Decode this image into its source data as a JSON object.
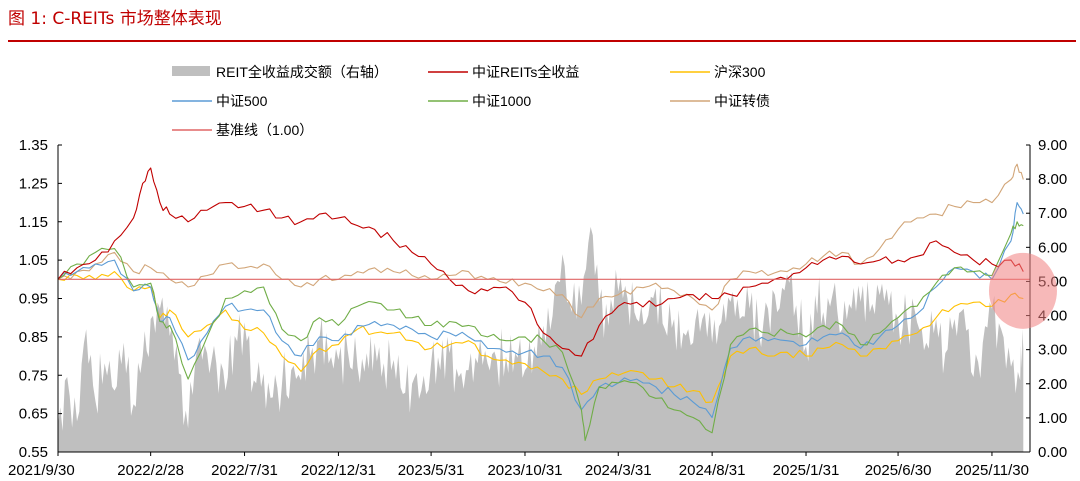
{
  "caption": "图 1: C-REITs 市场整体表现",
  "colors": {
    "caption": "#c00000",
    "volume": "#bfbfbf",
    "reits": "#c00000",
    "hs300": "#ffc000",
    "zz500": "#5b9bd5",
    "zz1000": "#70ad47",
    "zzcb": "#d2a679",
    "baseline": "#e06666",
    "highlight": "#f08080"
  },
  "chart_data": {
    "type": "line",
    "title": "",
    "legend_position": "top",
    "legend": [
      {
        "name": "REIT全收益成交额（右轴）",
        "key": "volume",
        "kind": "area"
      },
      {
        "name": "中证REITs全收益",
        "key": "reits",
        "kind": "line"
      },
      {
        "name": "沪深300",
        "key": "hs300",
        "kind": "line"
      },
      {
        "name": "中证500",
        "key": "zz500",
        "kind": "line"
      },
      {
        "name": "中证1000",
        "key": "zz1000",
        "kind": "line"
      },
      {
        "name": "中证转债",
        "key": "zzcb",
        "kind": "line"
      },
      {
        "name": "基准线（1.00）",
        "key": "baseline",
        "kind": "line"
      }
    ],
    "x_ticks": [
      "2021/9/30",
      "2022/2/28",
      "2022/7/31",
      "2022/12/31",
      "2023/5/31",
      "2023/10/31",
      "2024/3/31",
      "2024/8/31",
      "2025/1/31",
      "2025/6/30",
      "2025/11/30"
    ],
    "x_range": [
      "2021/9/30",
      "2026/1/31"
    ],
    "y_left": {
      "range": [
        0.55,
        1.35
      ],
      "ticks": [
        "0.55",
        "0.65",
        "0.75",
        "0.85",
        "0.95",
        "1.05",
        "1.15",
        "1.25",
        "1.35"
      ]
    },
    "y_right": {
      "range": [
        0,
        9
      ],
      "ticks": [
        "0.00",
        "1.00",
        "2.00",
        "3.00",
        "4.00",
        "5.00",
        "6.00",
        "7.00",
        "8.00",
        "9.00"
      ]
    },
    "baseline_value": 1.0,
    "highlight_note": "red circle marking the latest period (2025/12–2026/1)",
    "series": [
      {
        "name": "中证REITs全收益",
        "key": "reits",
        "axis": "left",
        "x": [
          "2021/9/30",
          "2021/10/31",
          "2021/11/30",
          "2021/12/31",
          "2022/1/31",
          "2022/2/15",
          "2022/2/28",
          "2022/3/15",
          "2022/3/31",
          "2022/4/30",
          "2022/5/31",
          "2022/6/30",
          "2022/7/31",
          "2022/8/31",
          "2022/9/30",
          "2022/10/31",
          "2022/11/30",
          "2022/12/31",
          "2023/1/31",
          "2023/2/28",
          "2023/3/31",
          "2023/4/30",
          "2023/5/31",
          "2023/6/30",
          "2023/7/31",
          "2023/8/31",
          "2023/9/30",
          "2023/10/31",
          "2023/11/30",
          "2023/12/31",
          "2024/1/31",
          "2024/2/29",
          "2024/3/31",
          "2024/4/30",
          "2024/5/31",
          "2024/6/30",
          "2024/7/31",
          "2024/8/31",
          "2024/9/30",
          "2024/10/31",
          "2024/11/30",
          "2024/12/31",
          "2025/1/31",
          "2025/2/28",
          "2025/3/31",
          "2025/4/30",
          "2025/5/31",
          "2025/6/30",
          "2025/7/31",
          "2025/8/31",
          "2025/9/30",
          "2025/10/31",
          "2025/11/30",
          "2025/12/31",
          "2026/1/20"
        ],
        "values": [
          1.0,
          1.03,
          1.05,
          1.1,
          1.16,
          1.25,
          1.29,
          1.2,
          1.17,
          1.15,
          1.18,
          1.2,
          1.19,
          1.18,
          1.16,
          1.15,
          1.17,
          1.16,
          1.14,
          1.13,
          1.1,
          1.07,
          1.04,
          1.0,
          0.97,
          0.97,
          0.98,
          0.94,
          0.86,
          0.82,
          0.8,
          0.88,
          0.93,
          0.94,
          0.93,
          0.95,
          0.96,
          0.95,
          0.96,
          0.98,
          0.99,
          1.0,
          1.03,
          1.05,
          1.06,
          1.04,
          1.05,
          1.05,
          1.06,
          1.1,
          1.07,
          1.05,
          1.04,
          1.05,
          1.02
        ]
      },
      {
        "name": "沪深300",
        "key": "hs300",
        "axis": "left",
        "x": [
          "2021/9/30",
          "2021/10/31",
          "2021/11/30",
          "2021/12/31",
          "2022/1/31",
          "2022/2/28",
          "2022/3/15",
          "2022/3/31",
          "2022/4/30",
          "2022/5/31",
          "2022/6/30",
          "2022/7/31",
          "2022/8/31",
          "2022/9/30",
          "2022/10/31",
          "2022/11/30",
          "2022/12/31",
          "2023/1/31",
          "2023/2/28",
          "2023/3/31",
          "2023/4/30",
          "2023/5/31",
          "2023/6/30",
          "2023/7/31",
          "2023/8/31",
          "2023/9/30",
          "2023/10/31",
          "2023/11/30",
          "2023/12/31",
          "2024/1/31",
          "2024/2/29",
          "2024/3/31",
          "2024/4/30",
          "2024/5/31",
          "2024/6/30",
          "2024/7/31",
          "2024/8/31",
          "2024/9/30",
          "2024/10/31",
          "2024/11/30",
          "2024/12/31",
          "2025/1/31",
          "2025/2/28",
          "2025/3/31",
          "2025/4/30",
          "2025/5/31",
          "2025/6/30",
          "2025/7/31",
          "2025/8/31",
          "2025/9/30",
          "2025/10/31",
          "2025/11/30",
          "2025/12/31",
          "2026/1/20"
        ],
        "values": [
          1.0,
          1.01,
          1.0,
          1.02,
          0.97,
          0.98,
          0.9,
          0.92,
          0.85,
          0.88,
          0.92,
          0.87,
          0.86,
          0.8,
          0.76,
          0.82,
          0.83,
          0.87,
          0.86,
          0.86,
          0.84,
          0.82,
          0.83,
          0.84,
          0.8,
          0.79,
          0.78,
          0.76,
          0.74,
          0.7,
          0.74,
          0.75,
          0.76,
          0.74,
          0.72,
          0.71,
          0.68,
          0.8,
          0.82,
          0.8,
          0.81,
          0.8,
          0.82,
          0.83,
          0.8,
          0.82,
          0.84,
          0.86,
          0.9,
          0.93,
          0.94,
          0.93,
          0.96,
          0.95
        ]
      },
      {
        "name": "中证500",
        "key": "zz500",
        "axis": "left",
        "x": [
          "2021/9/30",
          "2021/10/31",
          "2021/11/30",
          "2021/12/31",
          "2022/1/31",
          "2022/2/28",
          "2022/3/15",
          "2022/3/31",
          "2022/4/30",
          "2022/5/31",
          "2022/6/30",
          "2022/7/31",
          "2022/8/31",
          "2022/9/30",
          "2022/10/31",
          "2022/11/30",
          "2022/12/31",
          "2023/1/31",
          "2023/2/28",
          "2023/3/31",
          "2023/4/30",
          "2023/5/31",
          "2023/6/30",
          "2023/7/31",
          "2023/8/31",
          "2023/9/30",
          "2023/10/31",
          "2023/11/30",
          "2023/12/31",
          "2024/1/31",
          "2024/2/29",
          "2024/3/31",
          "2024/4/30",
          "2024/5/31",
          "2024/6/30",
          "2024/7/31",
          "2024/8/31",
          "2024/9/30",
          "2024/10/31",
          "2024/11/30",
          "2024/12/31",
          "2025/1/31",
          "2025/2/28",
          "2025/3/31",
          "2025/4/30",
          "2025/5/31",
          "2025/6/30",
          "2025/7/31",
          "2025/8/31",
          "2025/9/30",
          "2025/10/31",
          "2025/11/30",
          "2025/12/31",
          "2026/1/10",
          "2026/1/20"
        ],
        "values": [
          1.0,
          1.02,
          1.04,
          1.05,
          0.97,
          0.98,
          0.89,
          0.9,
          0.79,
          0.86,
          0.93,
          0.92,
          0.92,
          0.84,
          0.8,
          0.85,
          0.84,
          0.88,
          0.89,
          0.88,
          0.87,
          0.85,
          0.86,
          0.85,
          0.82,
          0.81,
          0.81,
          0.8,
          0.77,
          0.66,
          0.72,
          0.73,
          0.74,
          0.72,
          0.7,
          0.68,
          0.64,
          0.82,
          0.85,
          0.84,
          0.84,
          0.83,
          0.85,
          0.86,
          0.82,
          0.85,
          0.88,
          0.91,
          0.98,
          1.03,
          1.02,
          1.0,
          1.1,
          1.2,
          1.17
        ]
      },
      {
        "name": "中证1000",
        "key": "zz1000",
        "axis": "left",
        "x": [
          "2021/9/30",
          "2021/10/31",
          "2021/11/30",
          "2021/12/31",
          "2022/1/31",
          "2022/2/28",
          "2022/3/15",
          "2022/3/31",
          "2022/4/30",
          "2022/5/31",
          "2022/6/30",
          "2022/7/31",
          "2022/8/31",
          "2022/9/30",
          "2022/10/31",
          "2022/11/30",
          "2022/12/31",
          "2023/1/31",
          "2023/2/28",
          "2023/3/31",
          "2023/4/30",
          "2023/5/31",
          "2023/6/30",
          "2023/7/31",
          "2023/8/31",
          "2023/9/30",
          "2023/10/31",
          "2023/11/30",
          "2023/12/31",
          "2024/1/31",
          "2024/2/6",
          "2024/2/29",
          "2024/3/31",
          "2024/4/30",
          "2024/5/31",
          "2024/6/30",
          "2024/7/31",
          "2024/8/31",
          "2024/9/30",
          "2024/10/31",
          "2024/11/30",
          "2024/12/31",
          "2025/1/31",
          "2025/2/28",
          "2025/3/31",
          "2025/4/30",
          "2025/5/31",
          "2025/6/30",
          "2025/7/31",
          "2025/8/31",
          "2025/9/30",
          "2025/10/31",
          "2025/11/30",
          "2025/12/31",
          "2026/1/10",
          "2026/1/20"
        ],
        "values": [
          1.0,
          1.04,
          1.07,
          1.08,
          0.98,
          0.99,
          0.89,
          0.88,
          0.74,
          0.85,
          0.95,
          0.97,
          0.98,
          0.87,
          0.84,
          0.9,
          0.88,
          0.93,
          0.94,
          0.92,
          0.9,
          0.88,
          0.89,
          0.88,
          0.85,
          0.84,
          0.85,
          0.84,
          0.81,
          0.66,
          0.58,
          0.72,
          0.73,
          0.73,
          0.69,
          0.66,
          0.64,
          0.6,
          0.83,
          0.87,
          0.86,
          0.86,
          0.85,
          0.88,
          0.88,
          0.83,
          0.86,
          0.9,
          0.93,
          0.99,
          1.03,
          1.02,
          1.01,
          1.12,
          1.15,
          1.14
        ]
      },
      {
        "name": "中证转债",
        "key": "zzcb",
        "axis": "left",
        "x": [
          "2021/9/30",
          "2021/10/31",
          "2021/11/30",
          "2021/12/31",
          "2022/1/31",
          "2022/2/28",
          "2022/3/31",
          "2022/4/30",
          "2022/5/31",
          "2022/6/30",
          "2022/7/31",
          "2022/8/31",
          "2022/9/30",
          "2022/10/31",
          "2022/11/30",
          "2022/12/31",
          "2023/1/31",
          "2023/2/28",
          "2023/3/31",
          "2023/4/30",
          "2023/5/31",
          "2023/6/30",
          "2023/7/31",
          "2023/8/31",
          "2023/9/30",
          "2023/10/31",
          "2023/11/30",
          "2023/12/31",
          "2024/1/31",
          "2024/2/29",
          "2024/3/31",
          "2024/4/30",
          "2024/5/31",
          "2024/6/30",
          "2024/7/31",
          "2024/8/31",
          "2024/9/30",
          "2024/10/31",
          "2024/11/30",
          "2024/12/31",
          "2025/1/31",
          "2025/2/28",
          "2025/3/31",
          "2025/4/30",
          "2025/5/31",
          "2025/6/30",
          "2025/7/31",
          "2025/8/31",
          "2025/9/30",
          "2025/10/31",
          "2025/11/30",
          "2025/12/31",
          "2026/1/10",
          "2026/1/20"
        ],
        "values": [
          1.0,
          1.02,
          1.04,
          1.07,
          1.02,
          1.03,
          1.0,
          0.98,
          1.01,
          1.04,
          1.03,
          1.04,
          1.0,
          0.98,
          1.0,
          1.0,
          1.02,
          1.03,
          1.02,
          1.01,
          1.0,
          1.01,
          1.02,
          1.0,
          0.99,
          0.99,
          0.97,
          0.96,
          0.9,
          0.95,
          0.96,
          0.98,
          0.99,
          0.97,
          0.95,
          0.92,
          1.0,
          1.02,
          1.01,
          1.02,
          1.04,
          1.06,
          1.07,
          1.04,
          1.08,
          1.13,
          1.16,
          1.17,
          1.19,
          1.2,
          1.2,
          1.26,
          1.3,
          1.26
        ]
      },
      {
        "name": "REIT全收益成交额（右轴）",
        "key": "volume",
        "axis": "right",
        "kind": "area",
        "x": [
          "2021/9/30",
          "2021/10/15",
          "2021/10/31",
          "2021/11/15",
          "2021/11/30",
          "2021/12/15",
          "2021/12/31",
          "2022/1/15",
          "2022/1/31",
          "2022/2/15",
          "2022/2/28",
          "2022/3/15",
          "2022/3/31",
          "2022/4/15",
          "2022/4/30",
          "2022/5/15",
          "2022/5/31",
          "2022/6/15",
          "2022/6/30",
          "2022/7/15",
          "2022/7/31",
          "2022/8/15",
          "2022/8/31",
          "2022/9/15",
          "2022/9/30",
          "2022/10/15",
          "2022/10/31",
          "2022/11/15",
          "2022/11/30",
          "2022/12/15",
          "2022/12/31",
          "2023/1/15",
          "2023/1/31",
          "2023/2/15",
          "2023/2/28",
          "2023/3/15",
          "2023/3/31",
          "2023/4/15",
          "2023/4/30",
          "2023/5/15",
          "2023/5/31",
          "2023/6/15",
          "2023/6/30",
          "2023/7/15",
          "2023/7/31",
          "2023/8/15",
          "2023/8/31",
          "2023/9/15",
          "2023/9/30",
          "2023/10/15",
          "2023/10/31",
          "2023/11/15",
          "2023/11/30",
          "2023/12/15",
          "2023/12/31",
          "2024/1/15",
          "2024/1/31",
          "2024/2/15",
          "2024/2/29",
          "2024/3/15",
          "2024/3/31",
          "2024/4/15",
          "2024/4/30",
          "2024/5/15",
          "2024/5/31",
          "2024/6/15",
          "2024/6/30",
          "2024/7/15",
          "2024/7/31",
          "2024/8/15",
          "2024/8/31",
          "2024/9/15",
          "2024/9/30",
          "2024/10/15",
          "2024/10/31",
          "2024/11/15",
          "2024/11/30",
          "2024/12/15",
          "2024/12/31",
          "2025/1/15",
          "2025/1/31",
          "2025/2/15",
          "2025/2/28",
          "2025/3/15",
          "2025/3/31",
          "2025/4/15",
          "2025/4/30",
          "2025/5/15",
          "2025/5/31",
          "2025/6/15",
          "2025/6/30",
          "2025/7/15",
          "2025/7/31",
          "2025/8/15",
          "2025/8/31",
          "2025/9/15",
          "2025/9/30",
          "2025/10/15",
          "2025/10/31",
          "2025/11/15",
          "2025/11/30",
          "2025/12/15",
          "2025/12/31",
          "2026/1/15",
          "2026/1/20"
        ],
        "values": [
          0.8,
          2.2,
          0.9,
          3.6,
          1.5,
          2.6,
          1.8,
          3.2,
          1.4,
          2.8,
          3.9,
          4.2,
          3.4,
          2.3,
          0.7,
          3.1,
          2.9,
          2.6,
          1.8,
          3.4,
          3.8,
          2.1,
          2.3,
          1.6,
          2.0,
          2.4,
          2.1,
          2.8,
          3.3,
          2.6,
          2.7,
          3.0,
          2.5,
          2.9,
          3.2,
          2.6,
          2.7,
          1.7,
          2.0,
          1.8,
          2.6,
          2.4,
          2.9,
          2.2,
          2.4,
          2.6,
          2.6,
          2.7,
          2.8,
          2.9,
          2.4,
          3.1,
          3.7,
          4.0,
          5.8,
          4.1,
          4.3,
          6.6,
          4.4,
          3.7,
          4.7,
          4.5,
          3.9,
          3.8,
          4.8,
          3.6,
          3.9,
          3.5,
          3.2,
          3.9,
          3.2,
          3.8,
          4.4,
          3.9,
          4.2,
          3.5,
          4.2,
          4.1,
          5.2,
          4.3,
          3.1,
          4.6,
          4.1,
          4.6,
          3.6,
          4.2,
          4.4,
          4.1,
          4.6,
          4.3,
          3.9,
          3.8,
          3.8,
          3.2,
          3.9,
          2.9,
          3.9,
          4.2,
          2.2,
          3.2,
          4.2,
          3.6,
          2.5,
          2.1,
          3.0
        ]
      }
    ]
  }
}
